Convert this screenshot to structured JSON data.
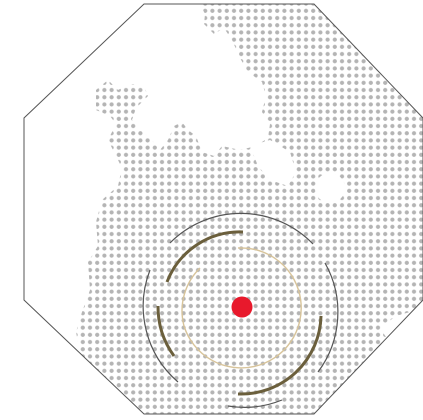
{
  "map": {
    "frame_shape": "octagon",
    "colors": {
      "background": "#ffffff",
      "frame_stroke": "#555555",
      "land_dots": "#b4b4b4",
      "location_marker": "#e8192c",
      "outer_ring": "#555555",
      "middle_ring": "#6b5f3c",
      "inner_ring": "#d8c49a"
    },
    "location_marker": {
      "icon": "location-dot-icon"
    },
    "range_rings": {
      "icon": "radar-rings-icon",
      "count": 3
    }
  }
}
